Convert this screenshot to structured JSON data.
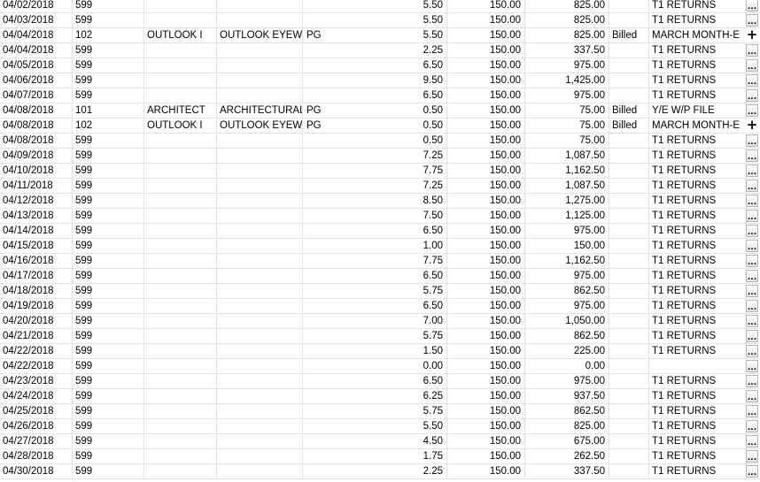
{
  "rows": [
    {
      "date": "04/02/2018",
      "code": "599",
      "client": "",
      "name": "",
      "ini": "",
      "hours": "5.50",
      "rate": "150.00",
      "amount": "825.00",
      "status": "",
      "desc": "T1 RETURNS",
      "button": "dots"
    },
    {
      "date": "04/03/2018",
      "code": "599",
      "client": "",
      "name": "",
      "ini": "",
      "hours": "5.50",
      "rate": "150.00",
      "amount": "825.00",
      "status": "",
      "desc": "T1 RETURNS",
      "button": "dots"
    },
    {
      "date": "04/04/2018",
      "code": "102",
      "client": "OUTLOOK I",
      "name": "OUTLOOK EYEWI",
      "ini": "PG",
      "hours": "5.50",
      "rate": "150.00",
      "amount": "825.00",
      "status": "Billed",
      "desc": "MARCH MONTH-E",
      "button": "plus"
    },
    {
      "date": "04/04/2018",
      "code": "599",
      "client": "",
      "name": "",
      "ini": "",
      "hours": "2.25",
      "rate": "150.00",
      "amount": "337.50",
      "status": "",
      "desc": "T1 RETURNS",
      "button": "dots"
    },
    {
      "date": "04/05/2018",
      "code": "599",
      "client": "",
      "name": "",
      "ini": "",
      "hours": "6.50",
      "rate": "150.00",
      "amount": "975.00",
      "status": "",
      "desc": "T1 RETURNS",
      "button": "dots"
    },
    {
      "date": "04/06/2018",
      "code": "599",
      "client": "",
      "name": "",
      "ini": "",
      "hours": "9.50",
      "rate": "150.00",
      "amount": "1,425.00",
      "status": "",
      "desc": "T1 RETURNS",
      "button": "dots"
    },
    {
      "date": "04/07/2018",
      "code": "599",
      "client": "",
      "name": "",
      "ini": "",
      "hours": "6.50",
      "rate": "150.00",
      "amount": "975.00",
      "status": "",
      "desc": "T1 RETURNS",
      "button": "dots"
    },
    {
      "date": "04/08/2018",
      "code": "101",
      "client": "ARCHITECT",
      "name": "ARCHITECTURAL",
      "ini": "PG",
      "hours": "0.50",
      "rate": "150.00",
      "amount": "75.00",
      "status": "Billed",
      "desc": "Y/E W/P FILE",
      "button": "dots"
    },
    {
      "date": "04/08/2018",
      "code": "102",
      "client": "OUTLOOK I",
      "name": "OUTLOOK EYEWI",
      "ini": "PG",
      "hours": "0.50",
      "rate": "150.00",
      "amount": "75.00",
      "status": "Billed",
      "desc": "MARCH MONTH-E",
      "button": "plus"
    },
    {
      "date": "04/08/2018",
      "code": "599",
      "client": "",
      "name": "",
      "ini": "",
      "hours": "0.50",
      "rate": "150.00",
      "amount": "75.00",
      "status": "",
      "desc": "T1 RETURNS",
      "button": "dots"
    },
    {
      "date": "04/09/2018",
      "code": "599",
      "client": "",
      "name": "",
      "ini": "",
      "hours": "7.25",
      "rate": "150.00",
      "amount": "1,087.50",
      "status": "",
      "desc": "T1 RETURNS",
      "button": "dots"
    },
    {
      "date": "04/10/2018",
      "code": "599",
      "client": "",
      "name": "",
      "ini": "",
      "hours": "7.75",
      "rate": "150.00",
      "amount": "1,162.50",
      "status": "",
      "desc": "T1 RETURNS",
      "button": "dots"
    },
    {
      "date": "04/11/2018",
      "code": "599",
      "client": "",
      "name": "",
      "ini": "",
      "hours": "7.25",
      "rate": "150.00",
      "amount": "1,087.50",
      "status": "",
      "desc": "T1 RETURNS",
      "button": "dots"
    },
    {
      "date": "04/12/2018",
      "code": "599",
      "client": "",
      "name": "",
      "ini": "",
      "hours": "8.50",
      "rate": "150.00",
      "amount": "1,275.00",
      "status": "",
      "desc": "T1 RETURNS",
      "button": "dots"
    },
    {
      "date": "04/13/2018",
      "code": "599",
      "client": "",
      "name": "",
      "ini": "",
      "hours": "7.50",
      "rate": "150.00",
      "amount": "1,125.00",
      "status": "",
      "desc": "T1 RETURNS",
      "button": "dots"
    },
    {
      "date": "04/14/2018",
      "code": "599",
      "client": "",
      "name": "",
      "ini": "",
      "hours": "6.50",
      "rate": "150.00",
      "amount": "975.00",
      "status": "",
      "desc": "T1 RETURNS",
      "button": "dots"
    },
    {
      "date": "04/15/2018",
      "code": "599",
      "client": "",
      "name": "",
      "ini": "",
      "hours": "1.00",
      "rate": "150.00",
      "amount": "150.00",
      "status": "",
      "desc": "T1 RETURNS",
      "button": "dots"
    },
    {
      "date": "04/16/2018",
      "code": "599",
      "client": "",
      "name": "",
      "ini": "",
      "hours": "7.75",
      "rate": "150.00",
      "amount": "1,162.50",
      "status": "",
      "desc": "T1 RETURNS",
      "button": "dots"
    },
    {
      "date": "04/17/2018",
      "code": "599",
      "client": "",
      "name": "",
      "ini": "",
      "hours": "6.50",
      "rate": "150.00",
      "amount": "975.00",
      "status": "",
      "desc": "T1 RETURNS",
      "button": "dots"
    },
    {
      "date": "04/18/2018",
      "code": "599",
      "client": "",
      "name": "",
      "ini": "",
      "hours": "5.75",
      "rate": "150.00",
      "amount": "862.50",
      "status": "",
      "desc": "T1 RETURNS",
      "button": "dots"
    },
    {
      "date": "04/19/2018",
      "code": "599",
      "client": "",
      "name": "",
      "ini": "",
      "hours": "6.50",
      "rate": "150.00",
      "amount": "975.00",
      "status": "",
      "desc": "T1 RETURNS",
      "button": "dots"
    },
    {
      "date": "04/20/2018",
      "code": "599",
      "client": "",
      "name": "",
      "ini": "",
      "hours": "7.00",
      "rate": "150.00",
      "amount": "1,050.00",
      "status": "",
      "desc": "T1 RETURNS",
      "button": "dots"
    },
    {
      "date": "04/21/2018",
      "code": "599",
      "client": "",
      "name": "",
      "ini": "",
      "hours": "5.75",
      "rate": "150.00",
      "amount": "862.50",
      "status": "",
      "desc": "T1 RETURNS",
      "button": "dots"
    },
    {
      "date": "04/22/2018",
      "code": "599",
      "client": "",
      "name": "",
      "ini": "",
      "hours": "1.50",
      "rate": "150.00",
      "amount": "225.00",
      "status": "",
      "desc": "T1 RETURNS",
      "button": "dots"
    },
    {
      "date": "04/22/2018",
      "code": "599",
      "client": "",
      "name": "",
      "ini": "",
      "hours": "0.00",
      "rate": "150.00",
      "amount": "0.00",
      "status": "",
      "desc": "",
      "button": "dots"
    },
    {
      "date": "04/23/2018",
      "code": "599",
      "client": "",
      "name": "",
      "ini": "",
      "hours": "6.50",
      "rate": "150.00",
      "amount": "975.00",
      "status": "",
      "desc": "T1 RETURNS",
      "button": "dots"
    },
    {
      "date": "04/24/2018",
      "code": "599",
      "client": "",
      "name": "",
      "ini": "",
      "hours": "6.25",
      "rate": "150.00",
      "amount": "937.50",
      "status": "",
      "desc": "T1 RETURNS",
      "button": "dots"
    },
    {
      "date": "04/25/2018",
      "code": "599",
      "client": "",
      "name": "",
      "ini": "",
      "hours": "5.75",
      "rate": "150.00",
      "amount": "862.50",
      "status": "",
      "desc": "T1 RETURNS",
      "button": "dots"
    },
    {
      "date": "04/26/2018",
      "code": "599",
      "client": "",
      "name": "",
      "ini": "",
      "hours": "5.50",
      "rate": "150.00",
      "amount": "825.00",
      "status": "",
      "desc": "T1 RETURNS",
      "button": "dots"
    },
    {
      "date": "04/27/2018",
      "code": "599",
      "client": "",
      "name": "",
      "ini": "",
      "hours": "4.50",
      "rate": "150.00",
      "amount": "675.00",
      "status": "",
      "desc": "T1 RETURNS",
      "button": "dots"
    },
    {
      "date": "04/28/2018",
      "code": "599",
      "client": "",
      "name": "",
      "ini": "",
      "hours": "1.75",
      "rate": "150.00",
      "amount": "262.50",
      "status": "",
      "desc": "T1 RETURNS",
      "button": "dots"
    },
    {
      "date": "04/30/2018",
      "code": "599",
      "client": "",
      "name": "",
      "ini": "",
      "hours": "2.25",
      "rate": "150.00",
      "amount": "337.50",
      "status": "",
      "desc": "T1 RETURNS",
      "button": "dots"
    }
  ],
  "buttons": {
    "dots": "...",
    "plus": "+"
  },
  "colors": {
    "gridline": "#e3e3e3",
    "background": "#ffffff"
  }
}
